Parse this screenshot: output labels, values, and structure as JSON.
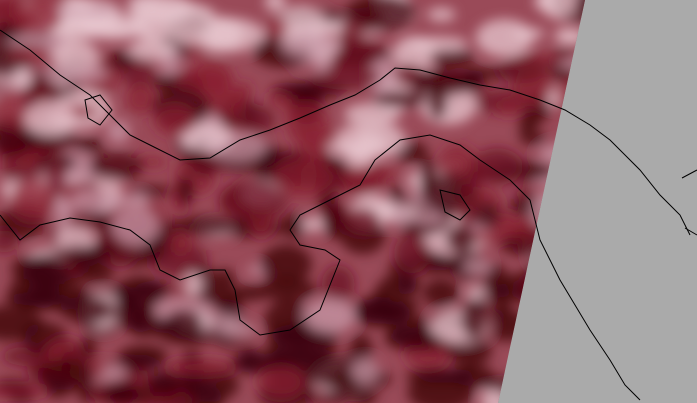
{
  "map": {
    "type": "satellite-imagery",
    "colors": {
      "no_data": "#aaaaaa",
      "low": "#3a0008",
      "mid": "#8a2030",
      "high": "#e8c8d0",
      "coastline": "#000000"
    }
  }
}
